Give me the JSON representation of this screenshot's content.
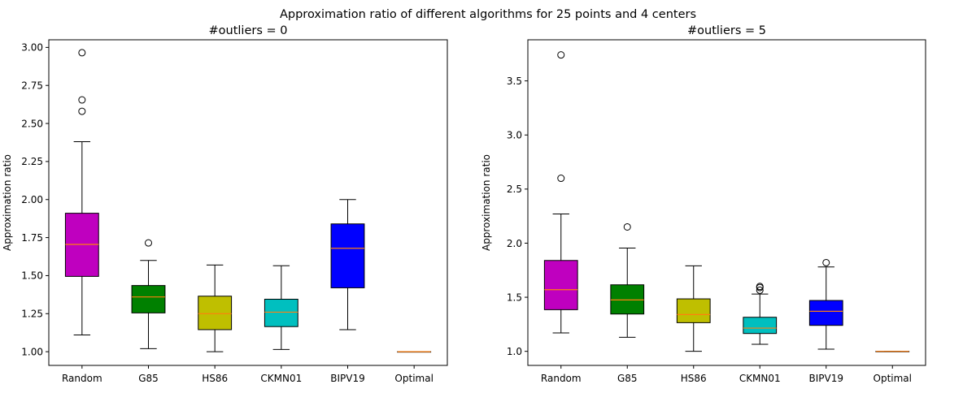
{
  "suptitle": "Approximation ratio of different algorithms for 25 points and 4 centers",
  "chart_data": [
    {
      "type": "box",
      "title": "#outliers = 0",
      "xlabel": "",
      "ylabel": "Approximation ratio",
      "ylim": [
        0.91,
        3.05
      ],
      "yticks": [
        1.0,
        1.25,
        1.5,
        1.75,
        2.0,
        2.25,
        2.5,
        2.75,
        3.0
      ],
      "ytick_labels": [
        "1.00",
        "1.25",
        "1.50",
        "1.75",
        "2.00",
        "2.25",
        "2.50",
        "2.75",
        "3.00"
      ],
      "categories": [
        "Random",
        "G85",
        "HS86",
        "CKMN01",
        "BIPV19",
        "Optimal"
      ],
      "colors": [
        "#bf00bf",
        "#008000",
        "#bfbf00",
        "#00bfbf",
        "#0000ff",
        "#ff7f0e"
      ],
      "median_color": "#ff7f0e",
      "grid": false,
      "boxes": [
        {
          "whisker_low": 1.11,
          "q1": 1.495,
          "median": 1.705,
          "q3": 1.91,
          "whisker_high": 2.38,
          "fliers": [
            2.58,
            2.655,
            2.965
          ]
        },
        {
          "whisker_low": 1.02,
          "q1": 1.255,
          "median": 1.36,
          "q3": 1.435,
          "whisker_high": 1.6,
          "fliers": [
            1.715
          ]
        },
        {
          "whisker_low": 1.0,
          "q1": 1.145,
          "median": 1.25,
          "q3": 1.365,
          "whisker_high": 1.57,
          "fliers": []
        },
        {
          "whisker_low": 1.015,
          "q1": 1.165,
          "median": 1.26,
          "q3": 1.345,
          "whisker_high": 1.565,
          "fliers": []
        },
        {
          "whisker_low": 1.145,
          "q1": 1.42,
          "median": 1.68,
          "q3": 1.84,
          "whisker_high": 2.0,
          "fliers": []
        },
        {
          "whisker_low": 1.0,
          "q1": 1.0,
          "median": 1.0,
          "q3": 1.0,
          "whisker_high": 1.0,
          "fliers": []
        }
      ]
    },
    {
      "type": "box",
      "title": "#outliers = 5",
      "xlabel": "",
      "ylabel": "Approximation ratio",
      "ylim": [
        0.87,
        3.88
      ],
      "yticks": [
        1.0,
        1.5,
        2.0,
        2.5,
        3.0,
        3.5
      ],
      "ytick_labels": [
        "1.0",
        "1.5",
        "2.0",
        "2.5",
        "3.0",
        "3.5"
      ],
      "categories": [
        "Random",
        "G85",
        "HS86",
        "CKMN01",
        "BIPV19",
        "Optimal"
      ],
      "colors": [
        "#bf00bf",
        "#008000",
        "#bfbf00",
        "#00bfbf",
        "#0000ff",
        "#ff7f0e"
      ],
      "median_color": "#ff7f0e",
      "grid": false,
      "boxes": [
        {
          "whisker_low": 1.17,
          "q1": 1.385,
          "median": 1.57,
          "q3": 1.84,
          "whisker_high": 2.27,
          "fliers": [
            2.6,
            3.74
          ]
        },
        {
          "whisker_low": 1.13,
          "q1": 1.345,
          "median": 1.475,
          "q3": 1.615,
          "whisker_high": 1.955,
          "fliers": [
            2.15
          ]
        },
        {
          "whisker_low": 1.0,
          "q1": 1.265,
          "median": 1.34,
          "q3": 1.485,
          "whisker_high": 1.79,
          "fliers": []
        },
        {
          "whisker_low": 1.065,
          "q1": 1.165,
          "median": 1.215,
          "q3": 1.315,
          "whisker_high": 1.53,
          "fliers": [
            1.565,
            1.59,
            1.6
          ]
        },
        {
          "whisker_low": 1.02,
          "q1": 1.24,
          "median": 1.37,
          "q3": 1.47,
          "whisker_high": 1.78,
          "fliers": [
            1.82
          ]
        },
        {
          "whisker_low": 1.0,
          "q1": 1.0,
          "median": 1.0,
          "q3": 1.0,
          "whisker_high": 1.0,
          "fliers": []
        }
      ]
    }
  ]
}
